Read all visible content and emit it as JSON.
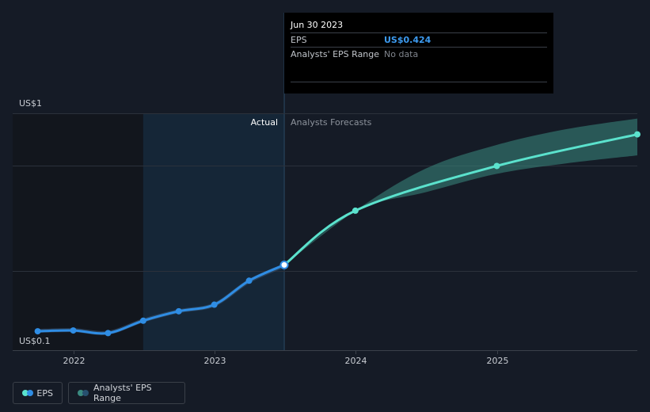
{
  "chart_data": {
    "type": "line",
    "y_axis": {
      "labels": [
        "US$1",
        "US$0.1"
      ],
      "ylim": [
        0.1,
        1.0
      ],
      "grid": true
    },
    "x_axis": {
      "ticks": [
        "2022",
        "2023",
        "2024",
        "2025"
      ],
      "xlim": [
        "2021-08-01",
        "2025-12-31"
      ]
    },
    "regions": {
      "actual_label": "Actual",
      "forecast_label": "Analysts Forecasts",
      "split_date": "2023-06-30"
    },
    "series": [
      {
        "name": "EPS",
        "kind": "actual",
        "color": "#2f8de4",
        "points": [
          {
            "date": "2021-09-30",
            "value": 0.172
          },
          {
            "date": "2021-12-31",
            "value": 0.175
          },
          {
            "date": "2022-03-31",
            "value": 0.165
          },
          {
            "date": "2022-06-30",
            "value": 0.212
          },
          {
            "date": "2022-09-30",
            "value": 0.248
          },
          {
            "date": "2022-12-31",
            "value": 0.273
          },
          {
            "date": "2023-03-31",
            "value": 0.364
          },
          {
            "date": "2023-06-30",
            "value": 0.424
          }
        ]
      },
      {
        "name": "EPS",
        "kind": "forecast",
        "color": "#5be2cd",
        "points": [
          {
            "date": "2023-06-30",
            "value": 0.424
          },
          {
            "date": "2023-12-31",
            "value": 0.63
          },
          {
            "date": "2024-12-31",
            "value": 0.8
          },
          {
            "date": "2025-12-31",
            "value": 0.92
          }
        ]
      },
      {
        "name": "Analysts' EPS Range",
        "kind": "range",
        "color": "#3a8a80",
        "points": [
          {
            "date": "2023-06-30",
            "low": 0.424,
            "high": 0.424
          },
          {
            "date": "2023-12-31",
            "low": 0.63,
            "high": 0.63
          },
          {
            "date": "2024-06-30",
            "low": 0.7,
            "high": 0.79
          },
          {
            "date": "2024-12-31",
            "low": 0.77,
            "high": 0.88
          },
          {
            "date": "2025-06-30",
            "low": 0.81,
            "high": 0.94
          },
          {
            "date": "2025-12-31",
            "low": 0.84,
            "high": 0.98
          }
        ]
      }
    ],
    "tooltip": {
      "date": "Jun 30 2023",
      "eps_label": "EPS",
      "eps_value": "US$0.424",
      "range_label": "Analysts' EPS Range",
      "range_value": "No data"
    },
    "legend": [
      {
        "label": "EPS",
        "colors": [
          "#5be2cd",
          "#2f8de4"
        ]
      },
      {
        "label": "Analysts' EPS Range",
        "colors": [
          "#3a8a80",
          "#27506f"
        ]
      }
    ]
  }
}
